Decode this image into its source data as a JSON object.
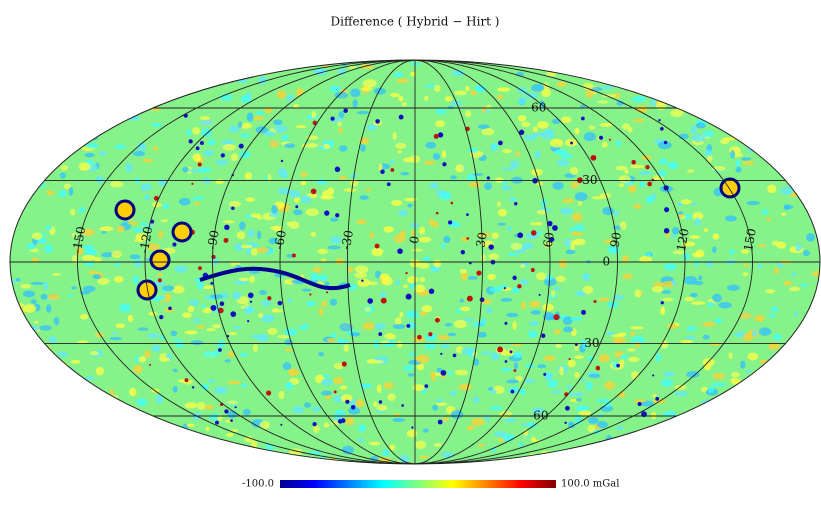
{
  "title": "Difference ( Hybrid − Hirt )",
  "longitude_labels": [
    -150,
    -120,
    -90,
    -60,
    -30,
    0,
    30,
    60,
    90,
    120,
    150
  ],
  "latitude_labels": [
    60,
    30,
    0,
    -30,
    -60
  ],
  "colorbar": {
    "min_label": "-100.0",
    "max_label": "100.0 mGal"
  }
}
